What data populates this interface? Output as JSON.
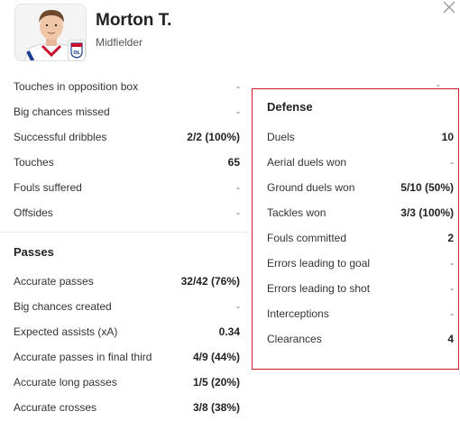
{
  "player": {
    "name": "Morton T.",
    "position": "Midfielder"
  },
  "attack_stats": [
    {
      "label": "Touches in opposition box",
      "value": "-"
    },
    {
      "label": "Big chances missed",
      "value": "-"
    },
    {
      "label": "Successful dribbles",
      "value": "2/2 (100%)"
    },
    {
      "label": "Touches",
      "value": "65"
    },
    {
      "label": "Fouls suffered",
      "value": "-"
    },
    {
      "label": "Offsides",
      "value": "-"
    }
  ],
  "passes": {
    "title": "Passes",
    "items": [
      {
        "label": "Accurate passes",
        "value": "32/42 (76%)"
      },
      {
        "label": "Big chances created",
        "value": "-"
      },
      {
        "label": "Expected assists (xA)",
        "value": "0.34"
      },
      {
        "label": "Accurate passes in final third",
        "value": "4/9 (44%)"
      },
      {
        "label": "Accurate long passes",
        "value": "1/5 (20%)"
      },
      {
        "label": "Accurate crosses",
        "value": "3/8 (38%)"
      }
    ]
  },
  "defense": {
    "title": "Defense",
    "items": [
      {
        "label": "Duels",
        "value": "10"
      },
      {
        "label": "Aerial duels won",
        "value": "-"
      },
      {
        "label": "Ground duels won",
        "value": "5/10 (50%)"
      },
      {
        "label": "Tackles won",
        "value": "3/3 (100%)"
      },
      {
        "label": "Fouls committed",
        "value": "2"
      },
      {
        "label": "Errors leading to goal",
        "value": "-"
      },
      {
        "label": "Errors leading to shot",
        "value": "-"
      },
      {
        "label": "Interceptions",
        "value": "-"
      },
      {
        "label": "Clearances",
        "value": "4"
      }
    ]
  },
  "behind_box_value": "-",
  "colors": {
    "highlight_border": "#d1182b",
    "text": "#222222"
  },
  "icons": {
    "close": "close-icon",
    "club": "lyon-club-badge-icon"
  }
}
